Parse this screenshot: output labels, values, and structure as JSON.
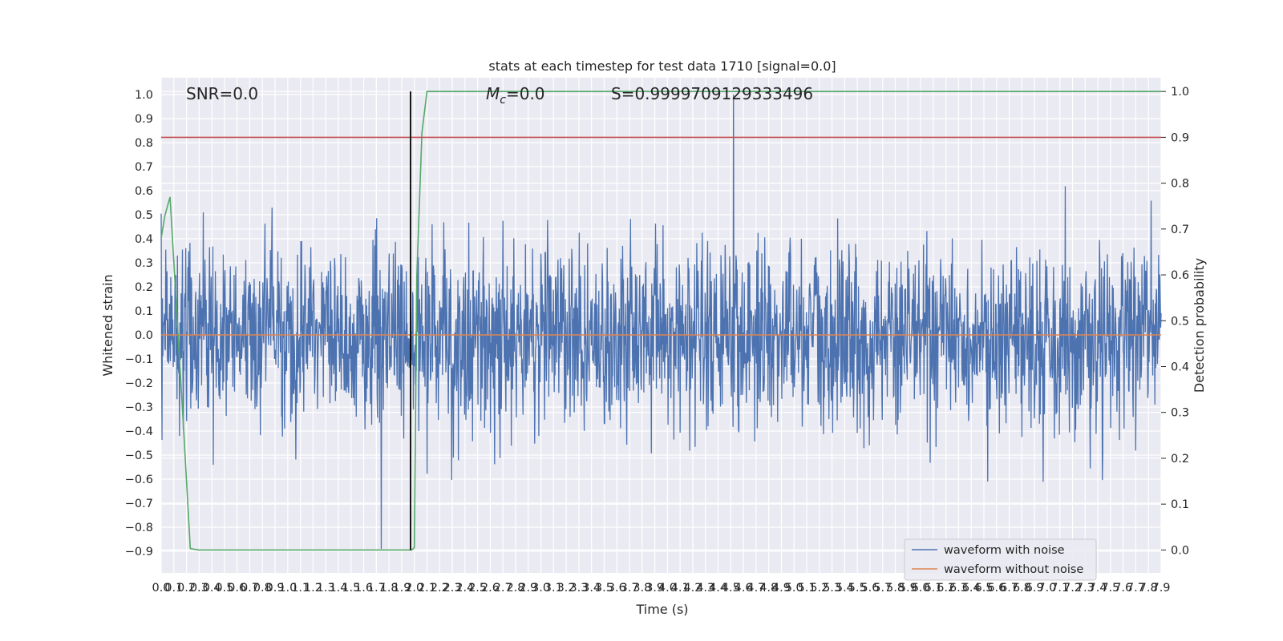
{
  "chart_data": {
    "type": "line",
    "title": "stats at each timestep for test data 1710 [signal=0.0]",
    "xlabel": "Time (s)",
    "ylabel": "Whitened strain",
    "ylabel_right": "Detection probability",
    "xlim": [
      0.0,
      7.9
    ],
    "ylim": [
      -0.99,
      1.07
    ],
    "ylim_right": [
      -0.05,
      1.03
    ],
    "x_ticks": [
      "0.0",
      "0.1",
      "0.2",
      "0.3",
      "0.4",
      "0.5",
      "0.6",
      "0.7",
      "0.8",
      "0.9",
      "1.0",
      "1.1",
      "1.2",
      "1.3",
      "1.4",
      "1.5",
      "1.6",
      "1.7",
      "1.8",
      "1.9",
      "2.0",
      "2.1",
      "2.2",
      "2.3",
      "2.4",
      "2.5",
      "2.6",
      "2.7",
      "2.8",
      "2.9",
      "3.0",
      "3.1",
      "3.2",
      "3.3",
      "3.4",
      "3.5",
      "3.6",
      "3.7",
      "3.8",
      "3.9",
      "4.0",
      "4.1",
      "4.2",
      "4.3",
      "4.4",
      "4.5",
      "4.6",
      "4.7",
      "4.8",
      "4.9",
      "5.0",
      "5.1",
      "5.2",
      "5.3",
      "5.4",
      "5.5",
      "5.6",
      "5.7",
      "5.8",
      "5.9",
      "6.0",
      "6.1",
      "6.2",
      "6.3",
      "6.4",
      "6.5",
      "6.6",
      "6.7",
      "6.8",
      "6.9",
      "7.0",
      "7.1",
      "7.2",
      "7.3",
      "7.4",
      "7.5",
      "7.6",
      "7.7",
      "7.8",
      "7.9"
    ],
    "y_ticks": [
      "1.0",
      "0.9",
      "0.8",
      "0.7",
      "0.6",
      "0.5",
      "0.4",
      "0.3",
      "0.2",
      "0.1",
      "0.0",
      "-0.1",
      "-0.2",
      "-0.3",
      "-0.4",
      "-0.5",
      "-0.6",
      "-0.7",
      "-0.8",
      "-0.9"
    ],
    "y_ticks_right": [
      "1.0",
      "0.9",
      "0.8",
      "0.7",
      "0.6",
      "0.5",
      "0.4",
      "0.3",
      "0.2",
      "0.1",
      "0.0"
    ],
    "annotations": {
      "snr": "SNR=0.0",
      "mc_symbol": "M",
      "mc_sub": "c",
      "mc_value": "=0.0",
      "s": "S=0.9999709129333496"
    },
    "grid": true,
    "legend_position": "lower-right",
    "series": [
      {
        "name": "waveform with noise",
        "color": "#4c72b0",
        "axis": "left",
        "style": "dense noise",
        "typical_range": [
          -0.45,
          0.45
        ],
        "max": 1.0,
        "min": -0.89,
        "seed": 1710
      },
      {
        "name": "waveform without noise",
        "color": "#dd8452",
        "axis": "left",
        "x": [
          0.0,
          7.9
        ],
        "y": [
          0.0,
          0.0
        ]
      },
      {
        "color": "#55a868",
        "axis": "right",
        "x": [
          0.0,
          0.03,
          0.07,
          0.18,
          0.23,
          0.3,
          1.0,
          1.5,
          1.95,
          1.98,
          2.0,
          2.02,
          2.06,
          2.1,
          7.9
        ],
        "y": [
          0.68,
          0.73,
          0.77,
          0.25,
          0.003,
          0.0,
          0.0,
          0.0,
          0.0,
          0.0,
          0.005,
          0.6,
          0.91,
          1.0,
          1.0
        ]
      },
      {
        "color": "#c44e52",
        "axis": "right",
        "x": [
          0.0,
          7.9
        ],
        "y": [
          0.9,
          0.9
        ]
      },
      {
        "color": "#000000",
        "axis": "right",
        "x": [
          1.97,
          1.97
        ],
        "y": [
          0.0,
          1.0
        ]
      }
    ]
  }
}
